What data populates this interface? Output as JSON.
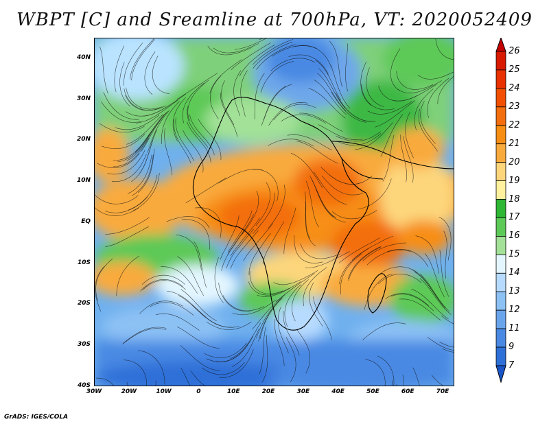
{
  "title": "WBPT [C] and Sreamline at 700hPa, VT: 2020052409",
  "credit": "GrADS: IGES/COLA",
  "map": {
    "lat_labels": [
      "40N",
      "30N",
      "20N",
      "10N",
      "EQ",
      "10S",
      "20S",
      "30S",
      "40S"
    ],
    "lon_labels": [
      "30W",
      "20W",
      "10W",
      "0",
      "10E",
      "20E",
      "30E",
      "40E",
      "50E",
      "60E",
      "70E"
    ]
  },
  "colorbar": {
    "levels": [
      "26",
      "25",
      "24",
      "23",
      "22",
      "21",
      "20",
      "19",
      "18",
      "17",
      "16",
      "15",
      "14",
      "13",
      "12",
      "11",
      "9",
      "7"
    ],
    "colors": [
      "#c40000",
      "#d81a00",
      "#e93200",
      "#f25000",
      "#f36e0e",
      "#f78e14",
      "#f9aa3c",
      "#fdd67c",
      "#fff19e",
      "#2eb635",
      "#5dc957",
      "#a2e197",
      "#e3f6ff",
      "#b7dbff",
      "#8cc1f4",
      "#6aa5ec",
      "#4a89e3",
      "#2e70d8",
      "#1955c8"
    ]
  }
}
